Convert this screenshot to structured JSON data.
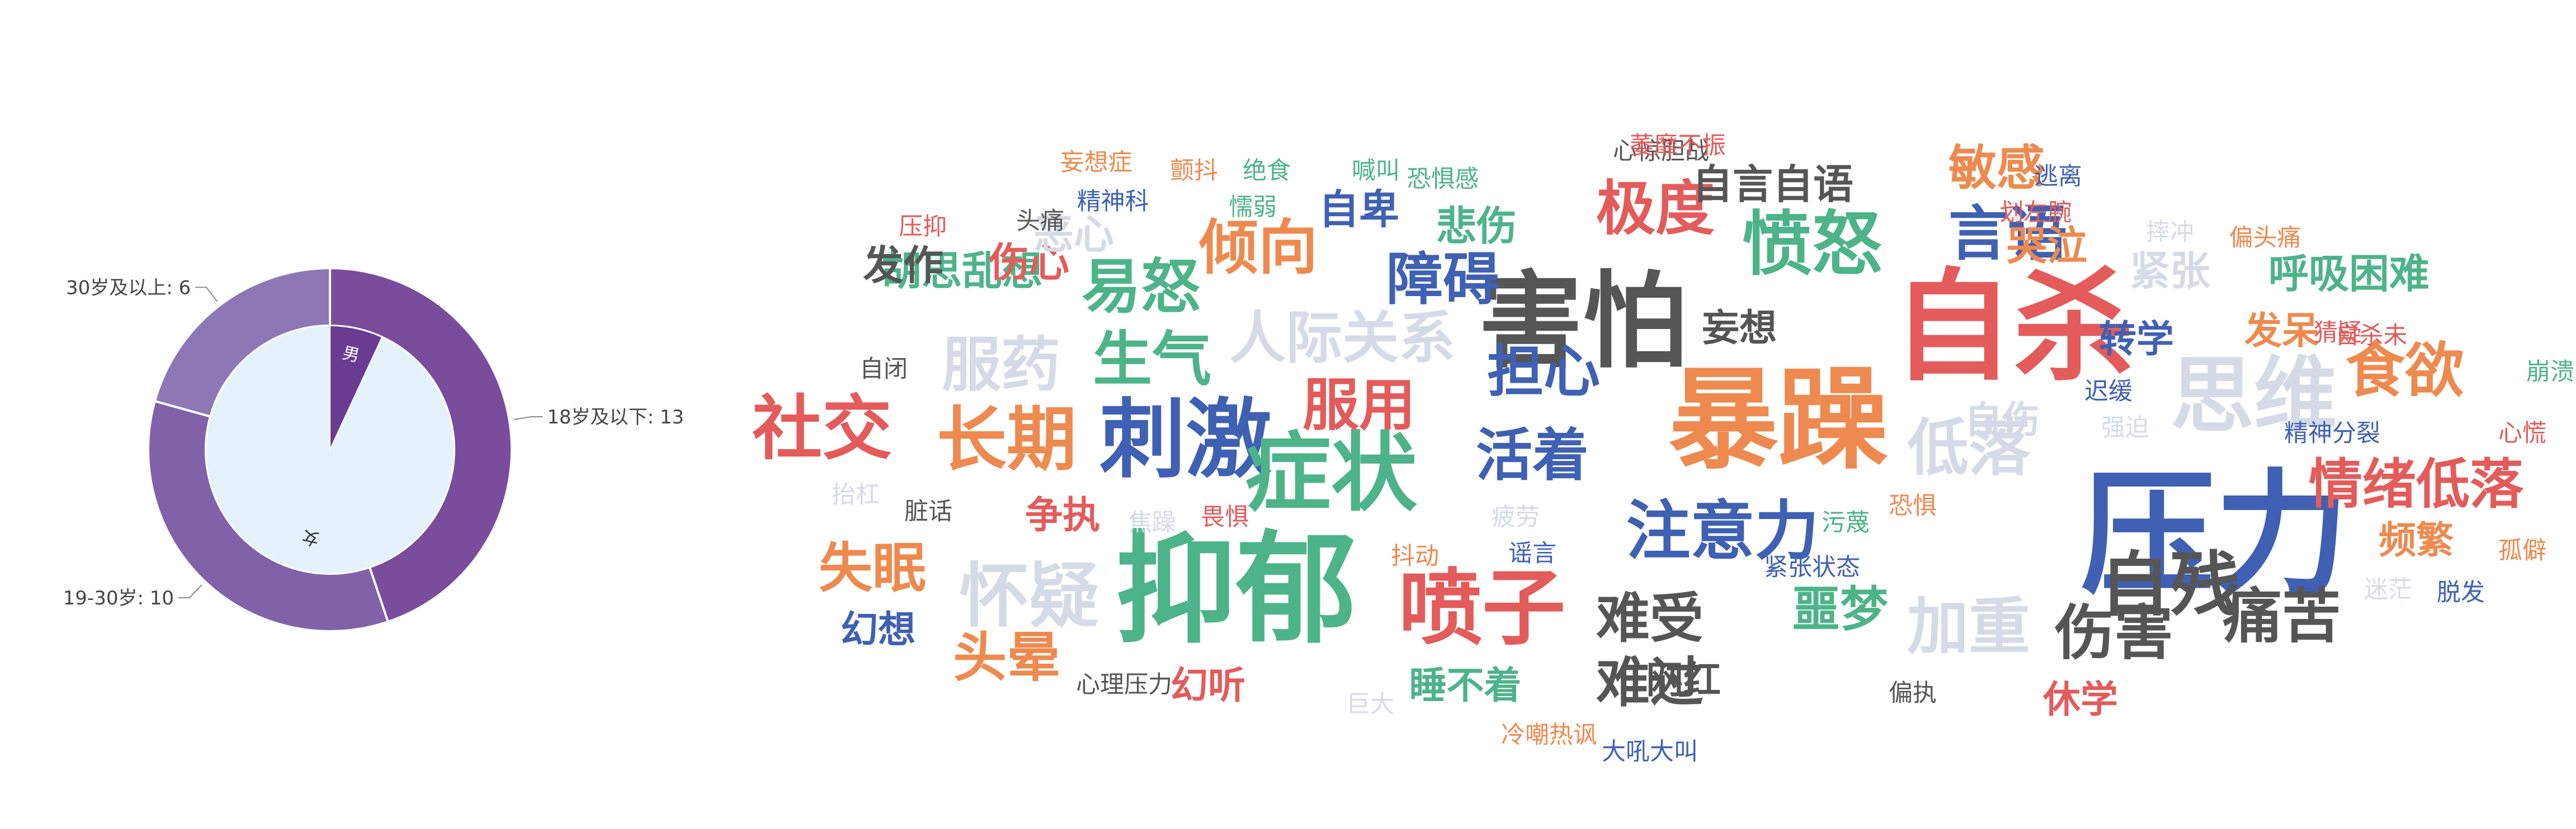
{
  "colors": {
    "gender_male": "#6a3c91",
    "gender_female": "#e5f1fb",
    "age_18_below": "#7a4c9c",
    "age_19_30": "#8162a8",
    "age_30_above": "#8d78b5",
    "leader_line": "#888888",
    "label_text": "#444444",
    "word_palette": [
      "#e45b5b",
      "#ee8a4f",
      "#3f60b3",
      "#4db38a",
      "#555555",
      "#d5dbe6"
    ]
  },
  "chart_data": [
    {
      "type": "pie",
      "name": "gender-inner-pie",
      "categories": [
        "男",
        "女"
      ],
      "values": [
        2,
        27
      ],
      "labels": [
        "男",
        "女"
      ]
    },
    {
      "type": "pie",
      "name": "age-outer-ring",
      "categories": [
        "18岁及以下",
        "19-30岁",
        "30岁及以上"
      ],
      "values": [
        13,
        10,
        6
      ],
      "labels": [
        "18岁及以下: 13",
        "19-30岁: 10",
        "30岁及以上: 6"
      ]
    },
    {
      "type": "wordcloud",
      "name": "symptom-word-cloud",
      "words": [
        {
          "text": "压力",
          "weight": 100,
          "color": 2
        },
        {
          "text": "自杀",
          "weight": 90,
          "color": 0
        },
        {
          "text": "抑郁",
          "weight": 90,
          "color": 3
        },
        {
          "text": "暴躁",
          "weight": 82,
          "color": 1
        },
        {
          "text": "害怕",
          "weight": 78,
          "color": 4
        },
        {
          "text": "刺激",
          "weight": 64,
          "color": 2
        },
        {
          "text": "症状",
          "weight": 64,
          "color": 3
        },
        {
          "text": "喷子",
          "weight": 62,
          "color": 0
        },
        {
          "text": "思维",
          "weight": 62,
          "color": 5
        },
        {
          "text": "愤怒",
          "weight": 52,
          "color": 3
        },
        {
          "text": "社交",
          "weight": 52,
          "color": 0
        },
        {
          "text": "长期",
          "weight": 52,
          "color": 1
        },
        {
          "text": "自残",
          "weight": 52,
          "color": 4
        },
        {
          "text": "怀疑",
          "weight": 52,
          "color": 5
        },
        {
          "text": "注意力",
          "weight": 48,
          "color": 2
        },
        {
          "text": "情绪低落",
          "weight": 40,
          "color": 0
        },
        {
          "text": "低落",
          "weight": 46,
          "color": 5
        },
        {
          "text": "加重",
          "weight": 46,
          "color": 5
        },
        {
          "text": "伤害",
          "weight": 44,
          "color": 4
        },
        {
          "text": "痛苦",
          "weight": 44,
          "color": 4
        },
        {
          "text": "易怒",
          "weight": 44,
          "color": 3
        },
        {
          "text": "生气",
          "weight": 44,
          "color": 3
        },
        {
          "text": "服药",
          "weight": 44,
          "color": 5
        },
        {
          "text": "倾向",
          "weight": 44,
          "color": 1
        },
        {
          "text": "极度",
          "weight": 44,
          "color": 0
        },
        {
          "text": "言语",
          "weight": 44,
          "color": 2
        },
        {
          "text": "食欲",
          "weight": 44,
          "color": 1
        },
        {
          "text": "障碍",
          "weight": 42,
          "color": 2
        },
        {
          "text": "担心",
          "weight": 42,
          "color": 2
        },
        {
          "text": "活着",
          "weight": 42,
          "color": 2
        },
        {
          "text": "服用",
          "weight": 42,
          "color": 0
        },
        {
          "text": "人际关系",
          "weight": 42,
          "color": 5
        },
        {
          "text": "难受",
          "weight": 40,
          "color": 4
        },
        {
          "text": "难过",
          "weight": 40,
          "color": 4
        },
        {
          "text": "失眠",
          "weight": 40,
          "color": 1
        },
        {
          "text": "头晕",
          "weight": 40,
          "color": 1
        },
        {
          "text": "噩梦",
          "weight": 36,
          "color": 3
        },
        {
          "text": "敏感",
          "weight": 36,
          "color": 1
        },
        {
          "text": "自言自语",
          "weight": 30,
          "color": 4
        },
        {
          "text": "呼吸困难",
          "weight": 30,
          "color": 3
        },
        {
          "text": "胡思乱想",
          "weight": 30,
          "color": 3
        },
        {
          "text": "紧张",
          "weight": 30,
          "color": 5
        },
        {
          "text": "哭泣",
          "weight": 30,
          "color": 1
        },
        {
          "text": "悲伤",
          "weight": 30,
          "color": 3
        },
        {
          "text": "自卑",
          "weight": 30,
          "color": 2
        },
        {
          "text": "伤心",
          "weight": 30,
          "color": 0
        },
        {
          "text": "发作",
          "weight": 30,
          "color": 4
        },
        {
          "text": "恶心",
          "weight": 30,
          "color": 5
        },
        {
          "text": "妄想",
          "weight": 28,
          "color": 4
        },
        {
          "text": "转学",
          "weight": 28,
          "color": 2
        },
        {
          "text": "发呆",
          "weight": 28,
          "color": 1
        },
        {
          "text": "自伤",
          "weight": 28,
          "color": 5
        },
        {
          "text": "频繁",
          "weight": 28,
          "color": 1
        },
        {
          "text": "幻想",
          "weight": 28,
          "color": 2
        },
        {
          "text": "争执",
          "weight": 28,
          "color": 0
        },
        {
          "text": "幻听",
          "weight": 28,
          "color": 0
        },
        {
          "text": "睡不着",
          "weight": 28,
          "color": 3
        },
        {
          "text": "网红",
          "weight": 28,
          "color": 4
        },
        {
          "text": "休学",
          "weight": 28,
          "color": 0
        },
        {
          "text": "心惊胆战",
          "weight": 18,
          "color": 4
        },
        {
          "text": "妄想症",
          "weight": 18,
          "color": 1
        },
        {
          "text": "颤抖",
          "weight": 18,
          "color": 1
        },
        {
          "text": "绝食",
          "weight": 18,
          "color": 3
        },
        {
          "text": "喊叫",
          "weight": 18,
          "color": 3
        },
        {
          "text": "恐惧感",
          "weight": 18,
          "color": 3
        },
        {
          "text": "萎靡不振",
          "weight": 18,
          "color": 0
        },
        {
          "text": "逃离",
          "weight": 18,
          "color": 2
        },
        {
          "text": "精神科",
          "weight": 18,
          "color": 2
        },
        {
          "text": "懦弱",
          "weight": 18,
          "color": 3
        },
        {
          "text": "压抑",
          "weight": 18,
          "color": 0
        },
        {
          "text": "头痛",
          "weight": 18,
          "color": 4
        },
        {
          "text": "划左腕",
          "weight": 18,
          "color": 0
        },
        {
          "text": "摔冲",
          "weight": 18,
          "color": 5
        },
        {
          "text": "偏头痛",
          "weight": 18,
          "color": 1
        },
        {
          "text": "猜疑",
          "weight": 18,
          "color": 0
        },
        {
          "text": "自杀未",
          "weight": 18,
          "color": 0
        },
        {
          "text": "崩溃",
          "weight": 18,
          "color": 3
        },
        {
          "text": "自闭",
          "weight": 18,
          "color": 4
        },
        {
          "text": "迟缓",
          "weight": 18,
          "color": 2
        },
        {
          "text": "强迫",
          "weight": 18,
          "color": 5
        },
        {
          "text": "精神分裂",
          "weight": 18,
          "color": 2
        },
        {
          "text": "心慌",
          "weight": 18,
          "color": 0
        },
        {
          "text": "抬杠",
          "weight": 18,
          "color": 5
        },
        {
          "text": "脏话",
          "weight": 18,
          "color": 4
        },
        {
          "text": "焦躁",
          "weight": 18,
          "color": 5
        },
        {
          "text": "畏惧",
          "weight": 18,
          "color": 0
        },
        {
          "text": "疲劳",
          "weight": 18,
          "color": 5
        },
        {
          "text": "抖动",
          "weight": 18,
          "color": 1
        },
        {
          "text": "谣言",
          "weight": 18,
          "color": 2
        },
        {
          "text": "污蔑",
          "weight": 18,
          "color": 3
        },
        {
          "text": "恐惧",
          "weight": 18,
          "color": 1
        },
        {
          "text": "紧张状态",
          "weight": 18,
          "color": 2
        },
        {
          "text": "孤僻",
          "weight": 18,
          "color": 1
        },
        {
          "text": "迷茫",
          "weight": 18,
          "color": 5
        },
        {
          "text": "脱发",
          "weight": 18,
          "color": 2
        },
        {
          "text": "心理压力",
          "weight": 18,
          "color": 4
        },
        {
          "text": "巨大",
          "weight": 18,
          "color": 5
        },
        {
          "text": "偏执",
          "weight": 18,
          "color": 4
        },
        {
          "text": "冷嘲热讽",
          "weight": 18,
          "color": 1
        },
        {
          "text": "大吼大叫",
          "weight": 18,
          "color": 2
        }
      ]
    }
  ]
}
